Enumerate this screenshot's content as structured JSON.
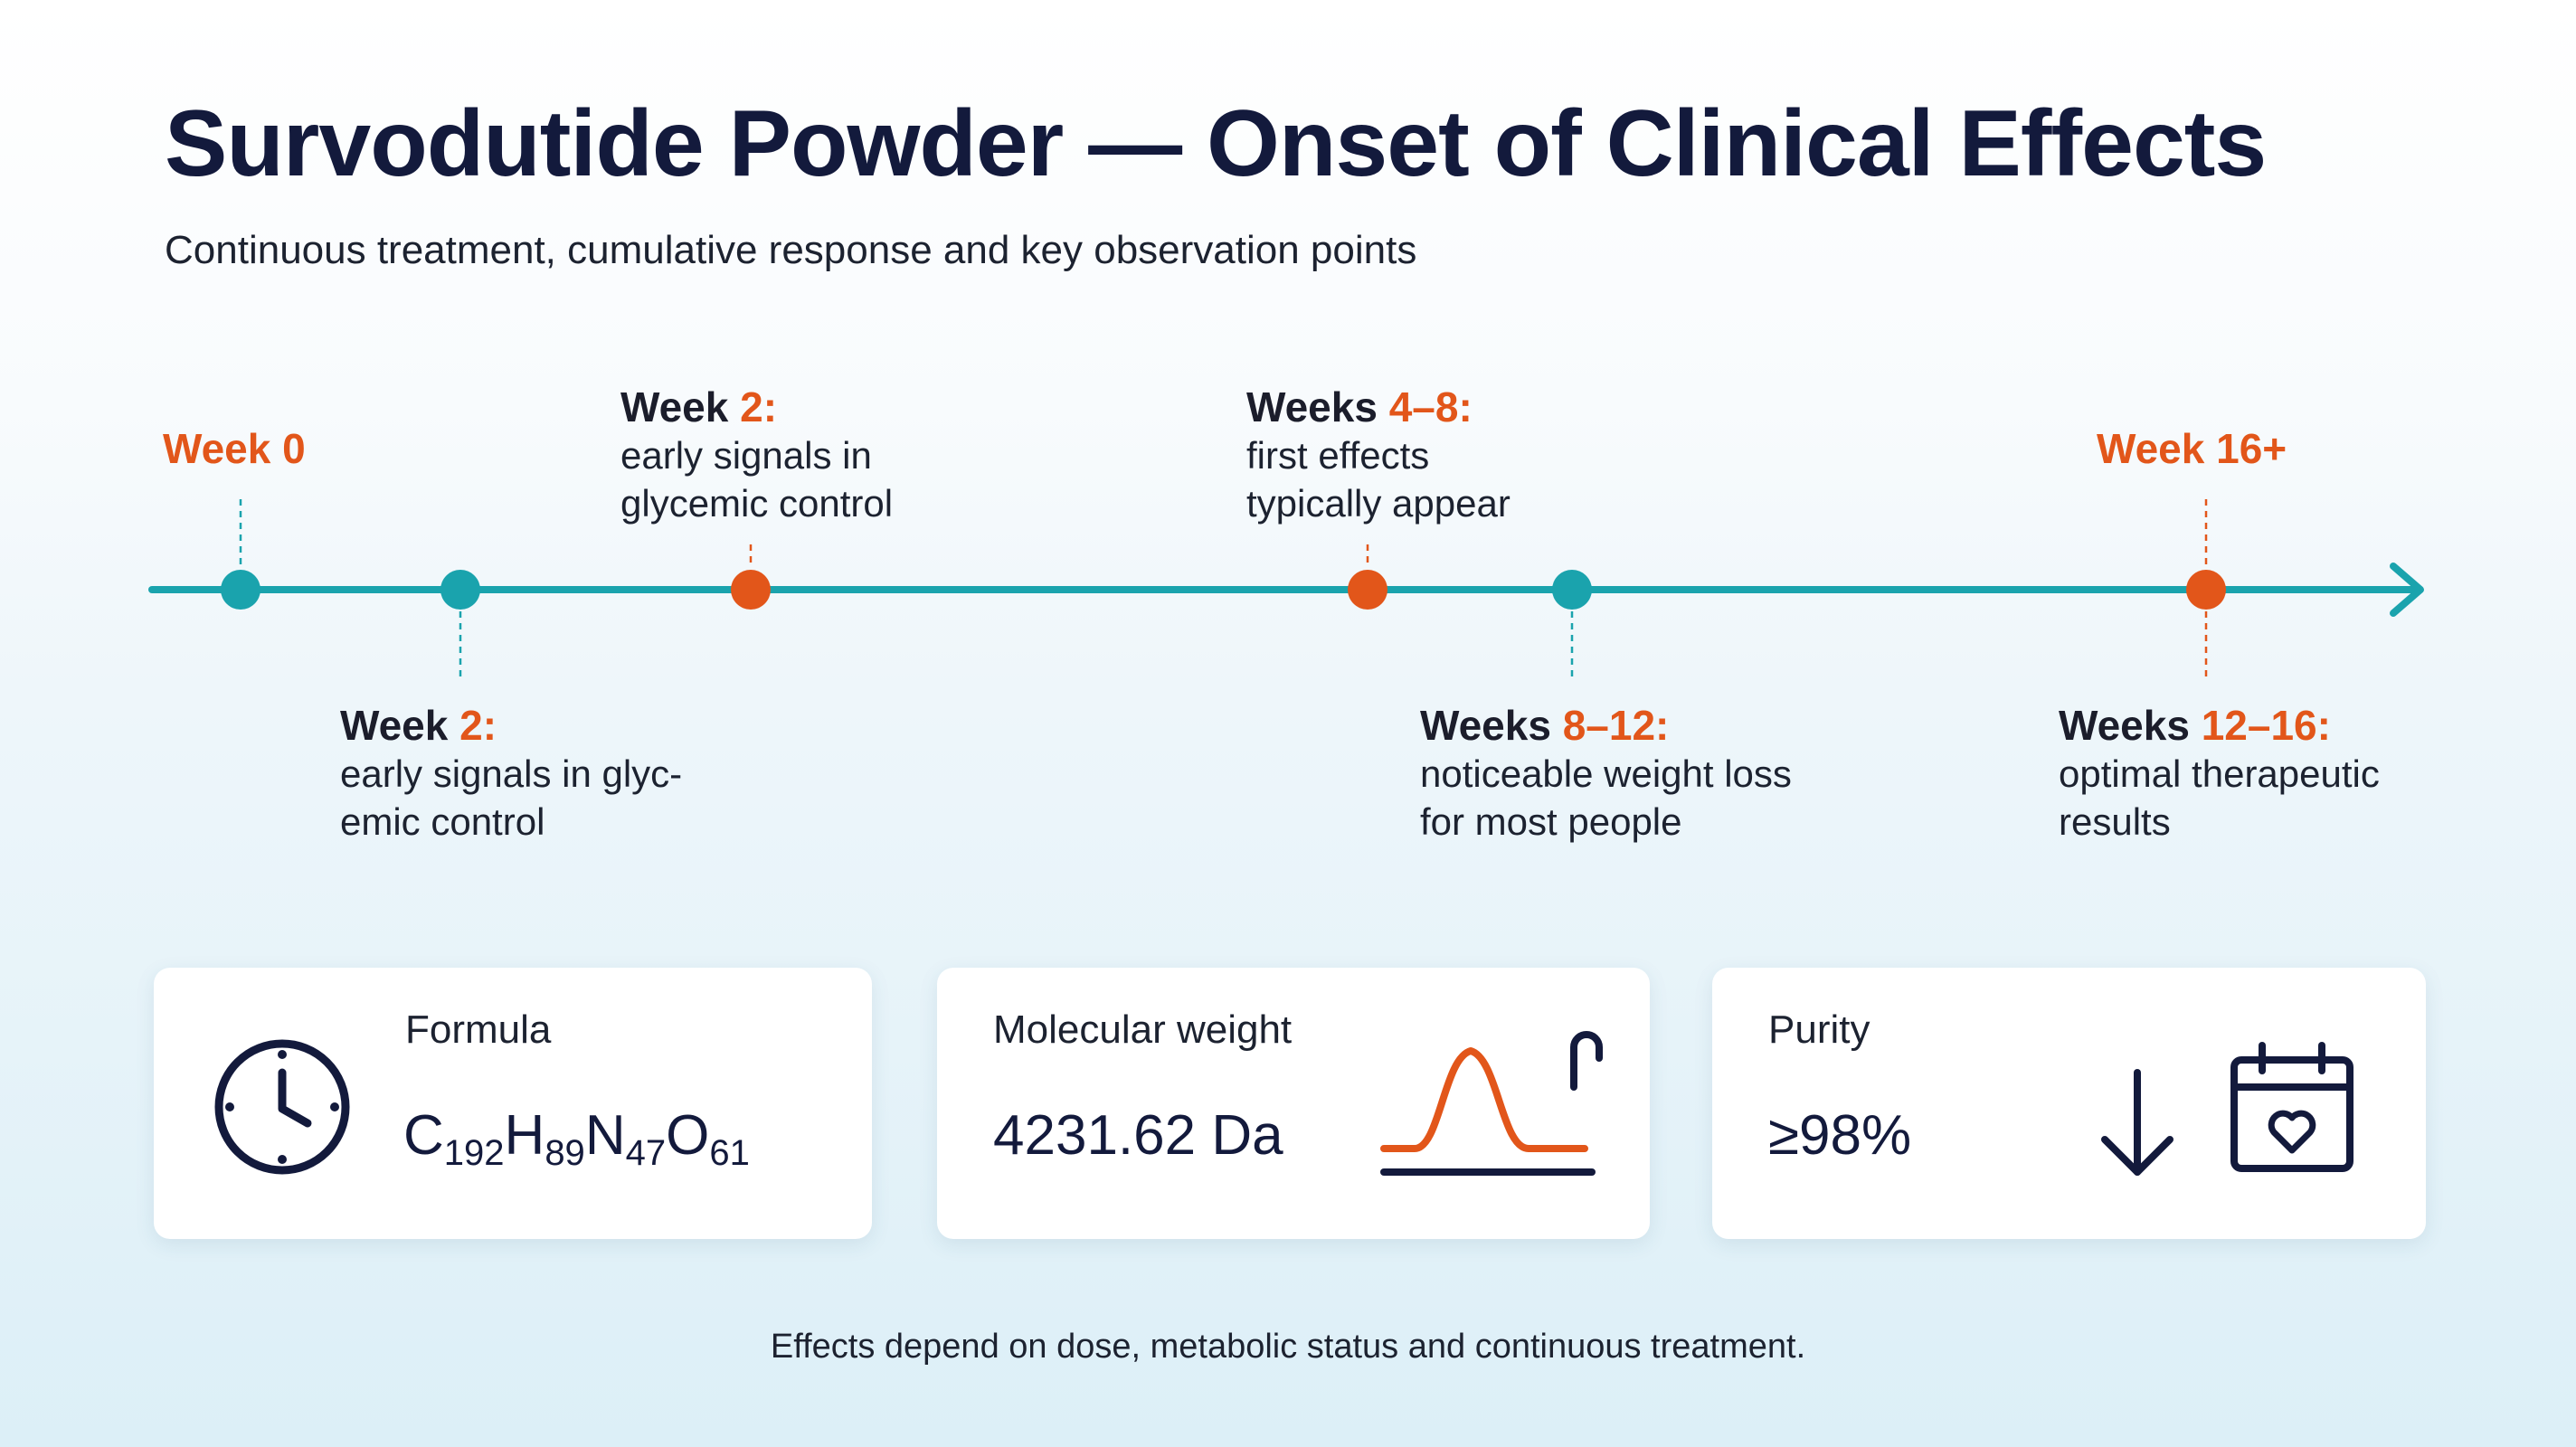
{
  "title": "Survodutide Powder — Onset of Clinical Effects",
  "subtitle": "Continuous treatment, cumulative response and key observation points",
  "colors": {
    "navy": "#131a3c",
    "teal": "#1aa3ad",
    "orange": "#e2561a"
  },
  "timeline": {
    "start_label": "Week 0",
    "end_label": "Week 16+",
    "above": [
      {
        "head_prefix": "Week ",
        "head_num": "2:",
        "lines": [
          "early signals in",
          "glycemic control"
        ]
      },
      {
        "head_prefix": "Weeks ",
        "head_num": "4–8:",
        "lines": [
          "first effects",
          "typically appear"
        ]
      }
    ],
    "below": [
      {
        "head_prefix": "Week ",
        "head_num": "2:",
        "lines": [
          "early signals in glyc-",
          "emic control"
        ]
      },
      {
        "head_prefix": "Weeks ",
        "head_num": "8–12:",
        "lines": [
          "noticeable weight loss",
          "for most people"
        ]
      },
      {
        "head_prefix": "Weeks ",
        "head_num": "12–16:",
        "lines": [
          "optimal therapeutic",
          "results"
        ]
      }
    ]
  },
  "cards": {
    "formula": {
      "label": "Formula",
      "elements": [
        {
          "symbol": "C",
          "count": "192"
        },
        {
          "symbol": "H",
          "count": "89"
        },
        {
          "symbol": "N",
          "count": "47"
        },
        {
          "symbol": "O",
          "count": "61"
        }
      ],
      "icon": "clock-icon"
    },
    "molecular_weight": {
      "label": "Molecular weight",
      "value": "4231.62 Da",
      "icon": "peak-curve-icon"
    },
    "purity": {
      "label": "Purity",
      "value": "≥98%",
      "icons": [
        "down-arrow-icon",
        "calendar-heart-icon"
      ]
    }
  },
  "footnote": "Effects depend on dose, metabolic status and continuous treatment."
}
